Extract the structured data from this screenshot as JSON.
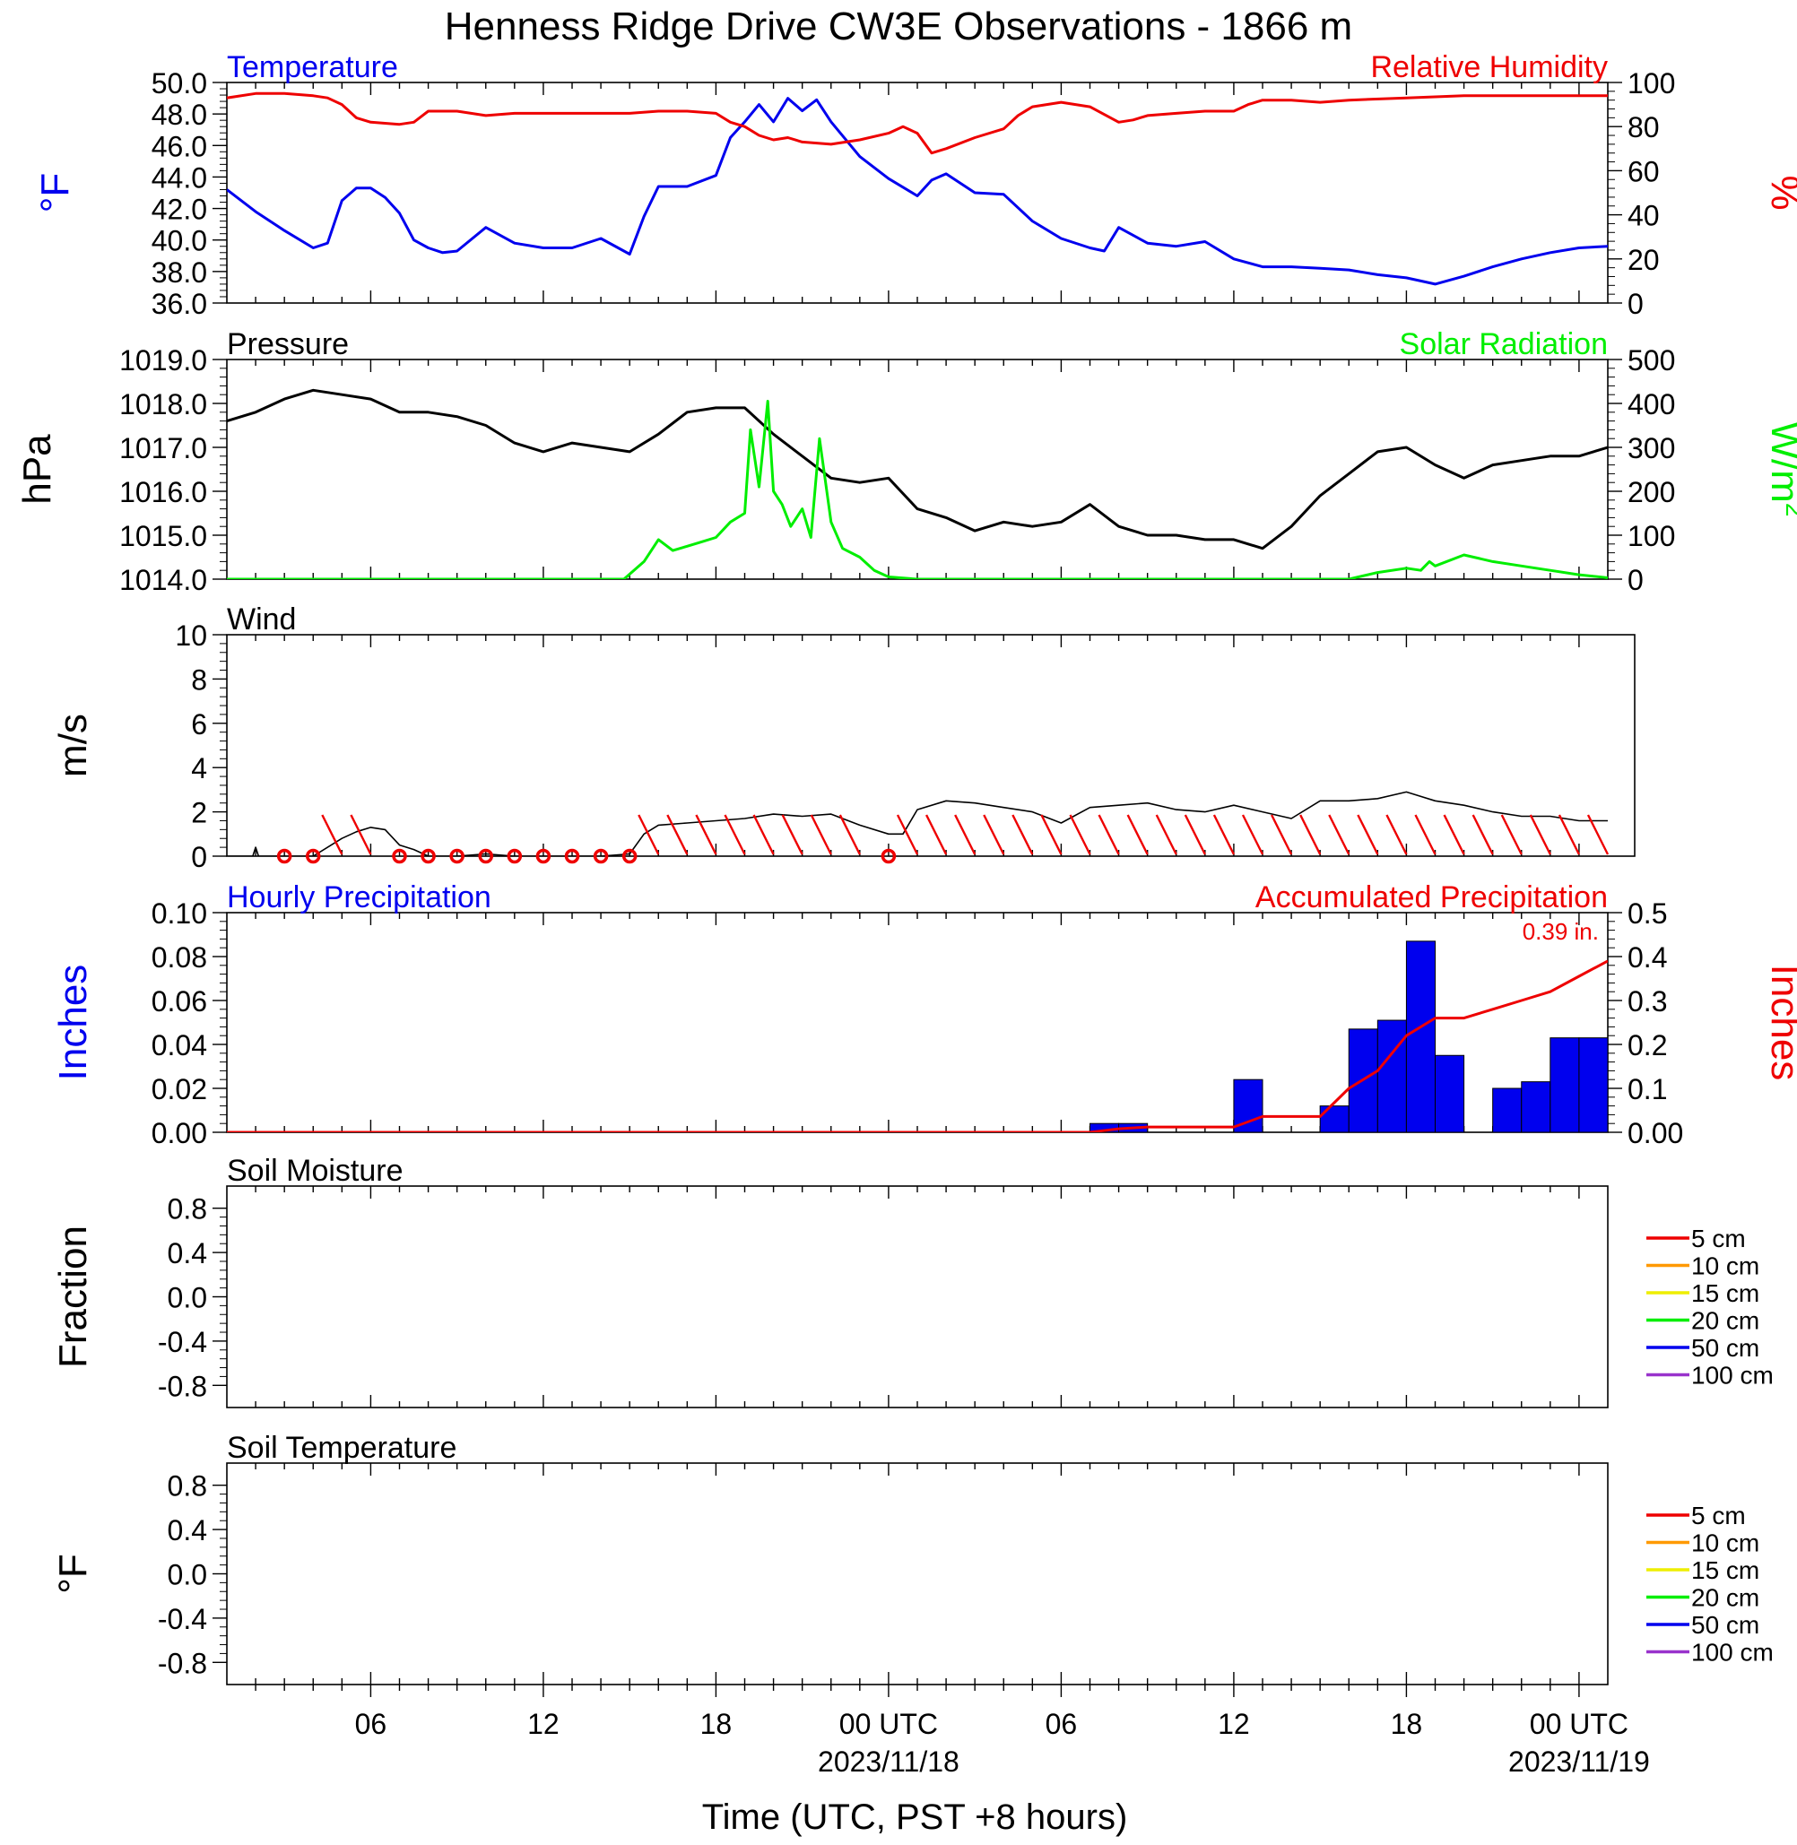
{
  "figure": {
    "title": "Henness Ridge Drive CW3E Observations - 1866 m",
    "xlabel": "Time (UTC, PST +8 hours)",
    "x_ticks": [
      {
        "t": 6,
        "label": "06"
      },
      {
        "t": 12,
        "label": "12"
      },
      {
        "t": 18,
        "label": "18"
      },
      {
        "t": 24,
        "label": "00 UTC",
        "date": "2023/11/18"
      },
      {
        "t": 30,
        "label": "06"
      },
      {
        "t": 36,
        "label": "12"
      },
      {
        "t": 42,
        "label": "18"
      },
      {
        "t": 48,
        "label": "00 UTC",
        "date": "2023/11/19"
      }
    ],
    "x_range_hours": [
      1,
      49
    ]
  },
  "chart_data": [
    {
      "id": "temp_rh",
      "type": "line",
      "title_left": "Temperature",
      "title_right": "Relative Humidity",
      "ylabel_left": "°F",
      "ylabel_right": "%",
      "ylim_left": [
        36.0,
        50.0
      ],
      "yticks_left": [
        "36.0",
        "38.0",
        "40.0",
        "42.0",
        "44.0",
        "46.0",
        "48.0",
        "50.0"
      ],
      "ylim_right": [
        0,
        100
      ],
      "yticks_right": [
        "0",
        "20",
        "40",
        "60",
        "80",
        "100"
      ],
      "series": [
        {
          "name": "Temperature",
          "axis": "left",
          "color": "#0000ee",
          "x": [
            1,
            2,
            3,
            4,
            4.5,
            5,
            5.5,
            6,
            6.5,
            7,
            7.5,
            8,
            8.5,
            9,
            10,
            11,
            12,
            13,
            14,
            15,
            15.5,
            16,
            17,
            18,
            18.5,
            19,
            19.5,
            20,
            20.5,
            21,
            21.5,
            22,
            23,
            24,
            25,
            25.5,
            26,
            27,
            28,
            29,
            30,
            31,
            31.5,
            32,
            33,
            34,
            35,
            36,
            37,
            38,
            39,
            40,
            41,
            42,
            43,
            44,
            45,
            46,
            47,
            48,
            49
          ],
          "y": [
            43.2,
            41.8,
            40.6,
            39.5,
            39.8,
            42.5,
            43.3,
            43.3,
            42.7,
            41.7,
            40.0,
            39.5,
            39.2,
            39.3,
            40.8,
            39.8,
            39.5,
            39.5,
            40.1,
            39.1,
            41.5,
            43.4,
            43.4,
            44.1,
            46.5,
            47.5,
            48.6,
            47.5,
            49.0,
            48.2,
            48.9,
            47.5,
            45.3,
            43.9,
            42.8,
            43.8,
            44.2,
            43.0,
            42.9,
            41.2,
            40.1,
            39.5,
            39.3,
            40.8,
            39.8,
            39.6,
            39.9,
            38.8,
            38.3,
            38.3,
            38.2,
            38.1,
            37.8,
            37.6,
            37.2,
            37.7,
            38.3,
            38.8,
            39.2,
            39.5,
            39.6
          ]
        },
        {
          "name": "Relative Humidity",
          "axis": "right",
          "color": "#ee0000",
          "x": [
            1,
            2,
            3,
            4,
            4.5,
            5,
            5.5,
            6,
            7,
            7.5,
            8,
            9,
            10,
            11,
            12,
            13,
            14,
            15,
            16,
            17,
            18,
            18.5,
            19,
            19.5,
            20,
            20.5,
            21,
            22,
            23,
            24,
            24.5,
            25,
            25.5,
            26,
            27,
            28,
            28.5,
            29,
            30,
            31,
            32,
            32.5,
            33,
            34,
            35,
            36,
            36.5,
            37,
            38,
            39,
            40,
            42,
            44,
            46,
            48,
            49
          ],
          "y": [
            93,
            95,
            95,
            94,
            93,
            90,
            84,
            82,
            81,
            82,
            87,
            87,
            85,
            86,
            86,
            86,
            86,
            86,
            87,
            87,
            86,
            82,
            80,
            76,
            74,
            75,
            73,
            72,
            74,
            77,
            80,
            77,
            68,
            70,
            75,
            79,
            85,
            89,
            91,
            89,
            82,
            83,
            85,
            86,
            87,
            87,
            90,
            92,
            92,
            91,
            92,
            93,
            94,
            94,
            94,
            94
          ]
        }
      ]
    },
    {
      "id": "pressure_solar",
      "type": "line",
      "title_left": "Pressure",
      "title_right": "Solar Radiation",
      "ylabel_left": "hPa",
      "ylabel_right": "W/m",
      "ylabel_right_sup": "2",
      "ylim_left": [
        1014.0,
        1019.0
      ],
      "yticks_left": [
        "1014.0",
        "1015.0",
        "1016.0",
        "1017.0",
        "1018.0",
        "1019.0"
      ],
      "ylim_right": [
        0,
        500
      ],
      "yticks_right": [
        "0",
        "100",
        "200",
        "300",
        "400",
        "500"
      ],
      "series": [
        {
          "name": "Pressure",
          "axis": "left",
          "color": "#000000",
          "x": [
            1,
            2,
            3,
            4,
            5,
            6,
            7,
            8,
            9,
            10,
            11,
            12,
            13,
            14,
            15,
            16,
            17,
            18,
            19,
            20,
            21,
            22,
            23,
            24,
            25,
            26,
            27,
            28,
            29,
            30,
            31,
            32,
            33,
            34,
            35,
            36,
            37,
            38,
            39,
            40,
            41,
            42,
            43,
            44,
            45,
            46,
            47,
            48,
            49
          ],
          "y": [
            1017.6,
            1017.8,
            1018.1,
            1018.3,
            1018.2,
            1018.1,
            1017.8,
            1017.8,
            1017.7,
            1017.5,
            1017.1,
            1016.9,
            1017.1,
            1017.0,
            1016.9,
            1017.3,
            1017.8,
            1017.9,
            1017.9,
            1017.3,
            1016.8,
            1016.3,
            1016.2,
            1016.3,
            1015.6,
            1015.4,
            1015.1,
            1015.3,
            1015.2,
            1015.3,
            1015.7,
            1015.2,
            1015.0,
            1015.0,
            1014.9,
            1014.9,
            1014.7,
            1015.2,
            1015.9,
            1016.4,
            1016.9,
            1017.0,
            1016.6,
            1016.3,
            1016.6,
            1016.7,
            1016.8,
            1016.8,
            1017.0
          ]
        },
        {
          "name": "Solar Radiation",
          "axis": "right",
          "color": "#00ee00",
          "x": [
            1,
            14.8,
            15.5,
            16,
            16.5,
            17,
            17.5,
            18,
            18.5,
            19,
            19.2,
            19.5,
            19.8,
            20,
            20.3,
            20.6,
            21,
            21.3,
            21.6,
            22,
            22.4,
            23,
            23.5,
            24,
            25,
            26,
            40,
            41,
            42,
            42.5,
            42.8,
            43,
            44,
            45,
            46,
            47,
            48,
            49
          ],
          "y": [
            0,
            0,
            40,
            90,
            65,
            75,
            85,
            95,
            130,
            150,
            340,
            210,
            405,
            200,
            170,
            120,
            160,
            95,
            320,
            130,
            70,
            50,
            20,
            5,
            0,
            0,
            0,
            15,
            25,
            20,
            40,
            30,
            55,
            40,
            30,
            20,
            10,
            3
          ]
        }
      ]
    },
    {
      "id": "wind",
      "type": "line",
      "title_left": "Wind",
      "ylabel_left": "m/s",
      "ylim_left": [
        0,
        10
      ],
      "yticks_left": [
        "0",
        "2",
        "4",
        "6",
        "8",
        "10"
      ],
      "series": [
        {
          "name": "Wind speed",
          "axis": "left",
          "color": "#000000",
          "x": [
            1,
            1.9,
            2,
            2.1,
            3,
            4,
            5,
            5.5,
            6,
            6.5,
            7,
            7.5,
            8,
            9,
            10,
            11,
            12,
            13,
            14,
            15,
            15.5,
            16,
            17,
            18,
            19,
            20,
            21,
            22,
            23,
            24,
            24.5,
            25,
            26,
            27,
            28,
            29,
            30,
            31,
            32,
            33,
            34,
            35,
            36,
            37,
            38,
            39,
            40,
            41,
            42,
            43,
            44,
            45,
            46,
            47,
            48,
            49
          ],
          "y": [
            0,
            0,
            0.4,
            0,
            0,
            0,
            0.8,
            1.1,
            1.3,
            1.2,
            0.5,
            0.3,
            0,
            0,
            0.1,
            0,
            0,
            0,
            0,
            0.1,
            1.0,
            1.4,
            1.5,
            1.6,
            1.7,
            1.9,
            1.8,
            1.9,
            1.4,
            1.0,
            1.0,
            2.1,
            2.5,
            2.4,
            2.2,
            2.0,
            1.5,
            2.2,
            2.3,
            2.4,
            2.1,
            2.0,
            2.3,
            2.0,
            1.7,
            2.5,
            2.5,
            2.6,
            2.9,
            2.5,
            2.3,
            2.0,
            1.8,
            1.8,
            1.6,
            1.6
          ]
        }
      ],
      "barbs": {
        "color": "#ee0000",
        "calm_x": [
          3,
          4,
          7,
          8,
          9,
          10,
          11,
          12,
          13,
          14,
          15,
          24
        ],
        "flag_x": [
          5,
          6,
          16,
          17,
          18,
          19,
          20,
          21,
          22,
          23,
          25,
          26,
          27,
          28,
          29,
          30,
          31,
          32,
          33,
          34,
          35,
          36,
          37,
          38,
          39,
          40,
          41,
          42,
          43,
          44,
          45,
          46,
          47,
          48,
          49
        ]
      }
    },
    {
      "id": "precip",
      "type": "bar",
      "title_left": "Hourly Precipitation",
      "title_right": "Accumulated Precipitation",
      "annotation": "0.39 in.",
      "ylabel_left": "Inches",
      "ylabel_right": "Inches",
      "ylim_left": [
        0.0,
        0.1
      ],
      "yticks_left": [
        "0.00",
        "0.02",
        "0.04",
        "0.06",
        "0.08",
        "0.10"
      ],
      "ylim_right": [
        0.0,
        0.5
      ],
      "yticks_right": [
        "0.00",
        "0.1",
        "0.2",
        "0.3",
        "0.4",
        "0.5"
      ],
      "bars_color": "#0000ee",
      "bars_start": [
        31,
        32,
        36,
        39,
        40,
        41,
        42,
        43,
        45,
        46,
        47,
        48
      ],
      "bars_value": [
        0.004,
        0.004,
        0.024,
        0.012,
        0.047,
        0.051,
        0.087,
        0.035,
        0.02,
        0.023,
        0.043,
        0.043
      ],
      "series": [
        {
          "name": "Accumulated Precipitation",
          "axis": "right",
          "color": "#ee0000",
          "x": [
            1,
            31,
            32,
            33,
            36,
            37,
            39,
            40,
            41,
            42,
            43,
            44,
            45,
            46,
            47,
            48,
            49
          ],
          "y": [
            0,
            0,
            0.008,
            0.012,
            0.012,
            0.036,
            0.036,
            0.1,
            0.14,
            0.22,
            0.26,
            0.26,
            0.28,
            0.3,
            0.32,
            0.355,
            0.39
          ]
        }
      ]
    },
    {
      "id": "soil_moisture",
      "type": "line",
      "title_left": "Soil Moisture",
      "ylabel_left": "Fraction",
      "ylim_left": [
        -1.0,
        1.0
      ],
      "yticks": [
        {
          "v": -0.8,
          "label": "-0.8"
        },
        {
          "v": -0.4,
          "label": "-0.4"
        },
        {
          "v": 0.0,
          "label": "0.0"
        },
        {
          "v": 0.4,
          "label": "0.4"
        },
        {
          "v": 0.8,
          "label": "0.8"
        }
      ],
      "legend": [
        {
          "label": "5 cm",
          "color": "#ee0000"
        },
        {
          "label": "10 cm",
          "color": "#ff9900"
        },
        {
          "label": "15 cm",
          "color": "#eeee00"
        },
        {
          "label": "20 cm",
          "color": "#00ee00"
        },
        {
          "label": "50 cm",
          "color": "#0000ee"
        },
        {
          "label": "100 cm",
          "color": "#9933cc"
        }
      ]
    },
    {
      "id": "soil_temp",
      "type": "line",
      "title_left": "Soil Temperature",
      "ylabel_left": "°F",
      "ylim_left": [
        -1.0,
        1.0
      ],
      "yticks": [
        {
          "v": -0.8,
          "label": "-0.8"
        },
        {
          "v": -0.4,
          "label": "-0.4"
        },
        {
          "v": 0.0,
          "label": "0.0"
        },
        {
          "v": 0.4,
          "label": "0.4"
        },
        {
          "v": 0.8,
          "label": "0.8"
        }
      ],
      "legend": [
        {
          "label": "5 cm",
          "color": "#ee0000"
        },
        {
          "label": "10 cm",
          "color": "#ff9900"
        },
        {
          "label": "15 cm",
          "color": "#eeee00"
        },
        {
          "label": "20 cm",
          "color": "#00ee00"
        },
        {
          "label": "50 cm",
          "color": "#0000ee"
        },
        {
          "label": "100 cm",
          "color": "#9933cc"
        }
      ]
    }
  ]
}
